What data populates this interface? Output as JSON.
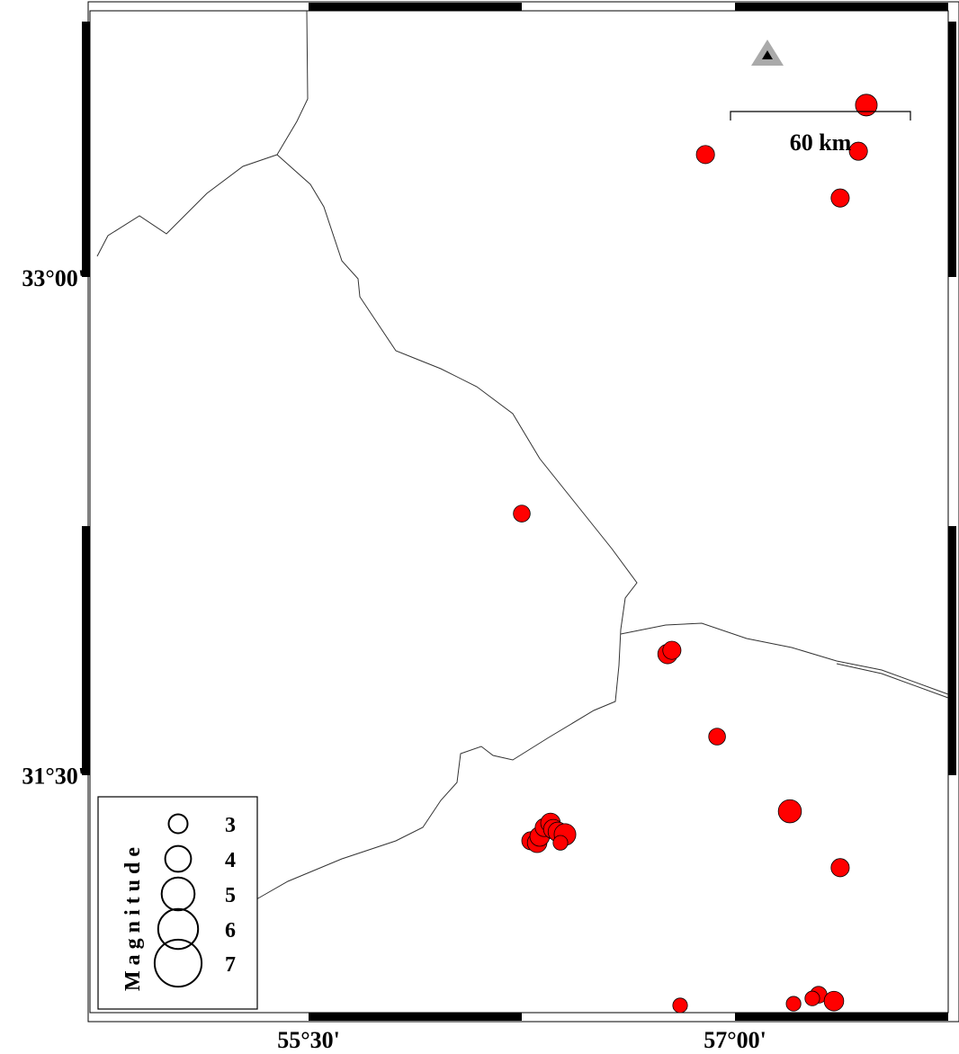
{
  "map": {
    "x_ticks": [
      {
        "lon": 55.5,
        "label": "55°30'"
      },
      {
        "lon": 57.0,
        "label": "57°00'"
      }
    ],
    "y_ticks": [
      {
        "lat": 33.0,
        "label": "33°00'"
      },
      {
        "lat": 31.5,
        "label": "31°30'"
      }
    ],
    "extent": {
      "lon": [
        54.73,
        57.75
      ],
      "lat": [
        30.785,
        33.8
      ]
    },
    "scale_bar": {
      "label": "60 km"
    },
    "station_symbol": "triangle",
    "event_color": "#ff0000",
    "events": [
      {
        "lon": 57.462,
        "lat": 33.518,
        "mag": 3.4
      },
      {
        "lon": 56.896,
        "lat": 33.369,
        "mag": 2.9
      },
      {
        "lon": 57.434,
        "lat": 33.379,
        "mag": 2.9
      },
      {
        "lon": 57.37,
        "lat": 33.238,
        "mag": 2.9
      },
      {
        "lon": 56.25,
        "lat": 32.287,
        "mag": 2.7
      },
      {
        "lon": 56.763,
        "lat": 31.864,
        "mag": 3.1
      },
      {
        "lon": 56.778,
        "lat": 31.875,
        "mag": 2.9
      },
      {
        "lon": 56.937,
        "lat": 31.615,
        "mag": 2.7
      },
      {
        "lon": 57.193,
        "lat": 31.39,
        "mag": 3.6
      },
      {
        "lon": 57.37,
        "lat": 31.22,
        "mag": 2.9
      },
      {
        "lon": 56.807,
        "lat": 30.805,
        "mag": 2.4
      },
      {
        "lon": 57.206,
        "lat": 30.81,
        "mag": 2.4
      },
      {
        "lon": 57.294,
        "lat": 30.837,
        "mag": 2.7
      },
      {
        "lon": 57.272,
        "lat": 30.826,
        "mag": 2.4
      },
      {
        "lon": 57.348,
        "lat": 30.818,
        "mag": 3.1
      },
      {
        "lon": 56.282,
        "lat": 31.301,
        "mag": 2.9
      },
      {
        "lon": 56.304,
        "lat": 31.295,
        "mag": 3.1
      },
      {
        "lon": 56.313,
        "lat": 31.314,
        "mag": 3.1
      },
      {
        "lon": 56.329,
        "lat": 31.341,
        "mag": 2.9
      },
      {
        "lon": 56.351,
        "lat": 31.355,
        "mag": 3.1
      },
      {
        "lon": 56.361,
        "lat": 31.336,
        "mag": 3.1
      },
      {
        "lon": 56.377,
        "lat": 31.328,
        "mag": 3.1
      },
      {
        "lon": 56.402,
        "lat": 31.32,
        "mag": 3.4
      },
      {
        "lon": 56.386,
        "lat": 31.295,
        "mag": 2.4
      }
    ]
  },
  "legend": {
    "title": "Magnitude",
    "items": [
      {
        "mag": 3,
        "label": "3"
      },
      {
        "mag": 4,
        "label": "4"
      },
      {
        "mag": 5,
        "label": "5"
      },
      {
        "mag": 6,
        "label": "6"
      },
      {
        "mag": 7,
        "label": "7"
      }
    ]
  }
}
